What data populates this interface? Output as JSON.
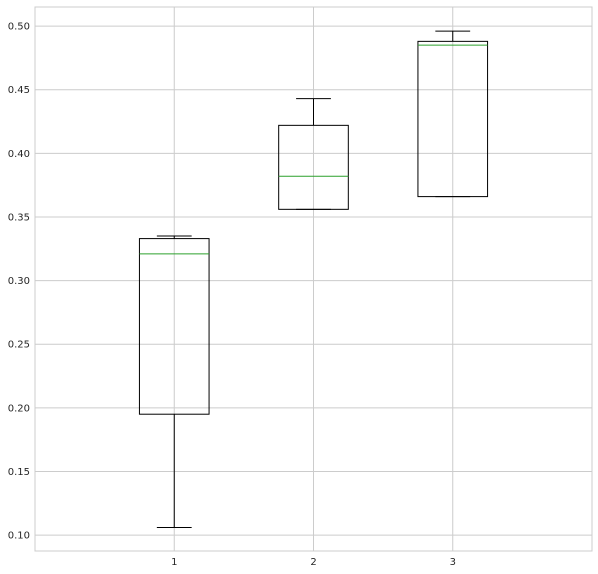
{
  "chart_data": {
    "type": "box",
    "title": "",
    "xlabel": "",
    "ylabel": "",
    "categories": [
      "1",
      "2",
      "3"
    ],
    "boxes": [
      {
        "label": "1",
        "whisker_low": 0.106,
        "q1": 0.195,
        "median": 0.321,
        "q3": 0.333,
        "whisker_high": 0.335
      },
      {
        "label": "2",
        "whisker_low": 0.356,
        "q1": 0.356,
        "median": 0.382,
        "q3": 0.422,
        "whisker_high": 0.443
      },
      {
        "label": "3",
        "whisker_low": 0.366,
        "q1": 0.366,
        "median": 0.485,
        "q3": 0.488,
        "whisker_high": 0.496
      }
    ],
    "ylim": [
      0.0875,
      0.515
    ],
    "y_ticks": [
      "0.10",
      "0.15",
      "0.20",
      "0.25",
      "0.30",
      "0.35",
      "0.40",
      "0.45",
      "0.50"
    ],
    "grid": true,
    "colors": {
      "box": "#000000",
      "median": "#2ca02c",
      "grid": "#cccccc",
      "frame": "#cccccc",
      "background": "#ffffff"
    }
  }
}
